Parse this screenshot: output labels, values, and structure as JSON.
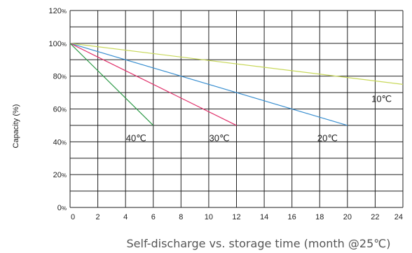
{
  "chart_data": {
    "type": "line",
    "title": "",
    "xlabel": "Self-discharge vs. storage time (month @25℃)",
    "ylabel": "Capacity (%)",
    "xlim": [
      0,
      24
    ],
    "ylim": [
      0,
      120
    ],
    "x_ticks": [
      "0",
      "2",
      "4",
      "6",
      "8",
      "10",
      "12",
      "14",
      "16",
      "18",
      "20",
      "22",
      "24"
    ],
    "y_ticks": [
      {
        "num": "0",
        "unit": "%"
      },
      {
        "num": "20",
        "unit": "%"
      },
      {
        "num": "40",
        "unit": "%"
      },
      {
        "num": "60",
        "unit": "%"
      },
      {
        "num": "80",
        "unit": "%"
      },
      {
        "num": "100",
        "unit": "%"
      },
      {
        "num": "120",
        "unit": "%"
      }
    ],
    "grid": true,
    "series": [
      {
        "name": "10℃",
        "color": "#c8d85a",
        "x": [
          0,
          24
        ],
        "y": [
          100,
          75
        ],
        "label_at": [
          23.2,
          66
        ]
      },
      {
        "name": "20℃",
        "color": "#3a8fd0",
        "x": [
          0,
          20
        ],
        "y": [
          100,
          50
        ],
        "label_at": [
          19.3,
          42
        ]
      },
      {
        "name": "30℃",
        "color": "#e0306a",
        "x": [
          0,
          12
        ],
        "y": [
          100,
          50
        ],
        "label_at": [
          11.5,
          42
        ]
      },
      {
        "name": "40℃",
        "color": "#2e9a48",
        "x": [
          0,
          6
        ],
        "y": [
          100,
          50
        ],
        "label_at": [
          5.5,
          42
        ]
      }
    ]
  }
}
